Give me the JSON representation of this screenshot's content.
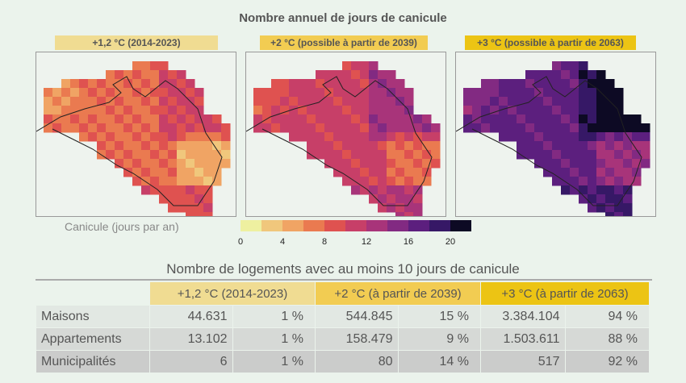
{
  "title": "Nombre annuel de jours de canicule",
  "maps": [
    {
      "label": "+1,2 °C (2014-2023)",
      "header_color": "#f0dc92"
    },
    {
      "label": "+2 °C (possible à partir de 2039)",
      "header_color": "#f2cc52"
    },
    {
      "label": "+3 °C (possible à partir de 2063)",
      "header_color": "#ecc414"
    }
  ],
  "colorbar": {
    "label": "Canicule (jours par an)",
    "ticks": [
      "0",
      "4",
      "8",
      "12",
      "16",
      "20"
    ],
    "range": [
      0,
      22
    ],
    "colors": [
      "#eef0a0",
      "#f0c77c",
      "#f0a464",
      "#ea7a50",
      "#df5250",
      "#c73f68",
      "#a8347a",
      "#822a82",
      "#5c1f7e",
      "#361866",
      "#0d0a24"
    ]
  },
  "table": {
    "title": "Nombre de logements avec au moins 10 jours de canicule",
    "headers": [
      "+1,2 °C (2014-2023)",
      "+2 °C (à partir de 2039)",
      "+3 °C (à partir de 2063)"
    ],
    "rows": [
      {
        "label": "Maisons",
        "cells": [
          "44.631",
          "1 %",
          "544.845",
          "15 %",
          "3.384.104",
          "94 %"
        ],
        "bg": "#e2e8e3"
      },
      {
        "label": "Appartements",
        "cells": [
          "13.102",
          "1 %",
          "158.479",
          "9 %",
          "1.503.611",
          "88 %"
        ],
        "bg": "#d6d9d6"
      },
      {
        "label": "Municipalités",
        "cells": [
          "6",
          "1 %",
          "80",
          "14 %",
          "517",
          "92 %"
        ],
        "bg": "#cbcccb"
      }
    ]
  }
}
